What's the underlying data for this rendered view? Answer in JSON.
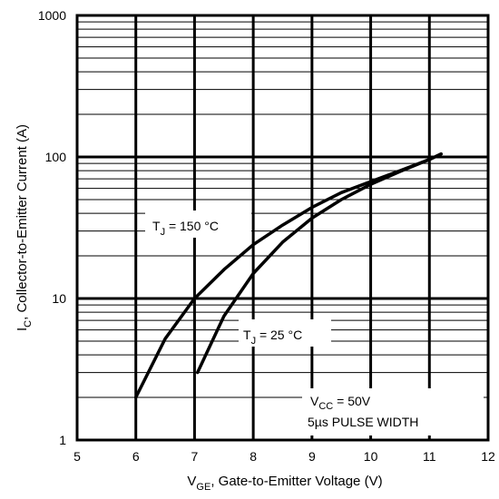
{
  "chart_data": {
    "type": "line",
    "x_scale": "linear",
    "y_scale": "log",
    "xlim": [
      5,
      12
    ],
    "ylim": [
      1,
      1000
    ],
    "x_ticks": [
      "5",
      "6",
      "7",
      "8",
      "9",
      "10",
      "11",
      "12"
    ],
    "y_ticks": [
      "1",
      "10",
      "100",
      "1000"
    ],
    "grid": true,
    "xlabel": {
      "main": "V",
      "sub": "GE",
      "rest": ", Gate-to-Emitter Voltage (V)"
    },
    "ylabel": {
      "main": "I",
      "sub": "C",
      "rest": ",  Collector-to-Emitter Current (A)"
    },
    "series": [
      {
        "name": {
          "main": "T",
          "sub": "J",
          "rest": " = 150 °C"
        },
        "x": [
          6.0,
          6.5,
          7.0,
          7.5,
          8.0,
          8.5,
          9.0,
          9.5,
          10.0,
          10.5,
          11.0,
          11.2
        ],
        "y": [
          2.0,
          5.2,
          10.0,
          16.0,
          24.0,
          33.0,
          44.0,
          56.0,
          67.0,
          80.0,
          96.0,
          105.0
        ]
      },
      {
        "name": {
          "main": "T",
          "sub": "J",
          "rest": " = 25 °C"
        },
        "x": [
          7.05,
          7.5,
          8.0,
          8.5,
          9.0,
          9.5,
          10.0,
          10.5,
          11.0,
          11.2
        ],
        "y": [
          3.0,
          7.5,
          15.0,
          25.0,
          37.0,
          50.0,
          64.0,
          79.0,
          96.0,
          105.0
        ]
      }
    ],
    "annotations": {
      "vcc": {
        "main": "V",
        "sub": "CC",
        "rest": " = 50V"
      },
      "pulse": "5µs PULSE WIDTH"
    }
  }
}
